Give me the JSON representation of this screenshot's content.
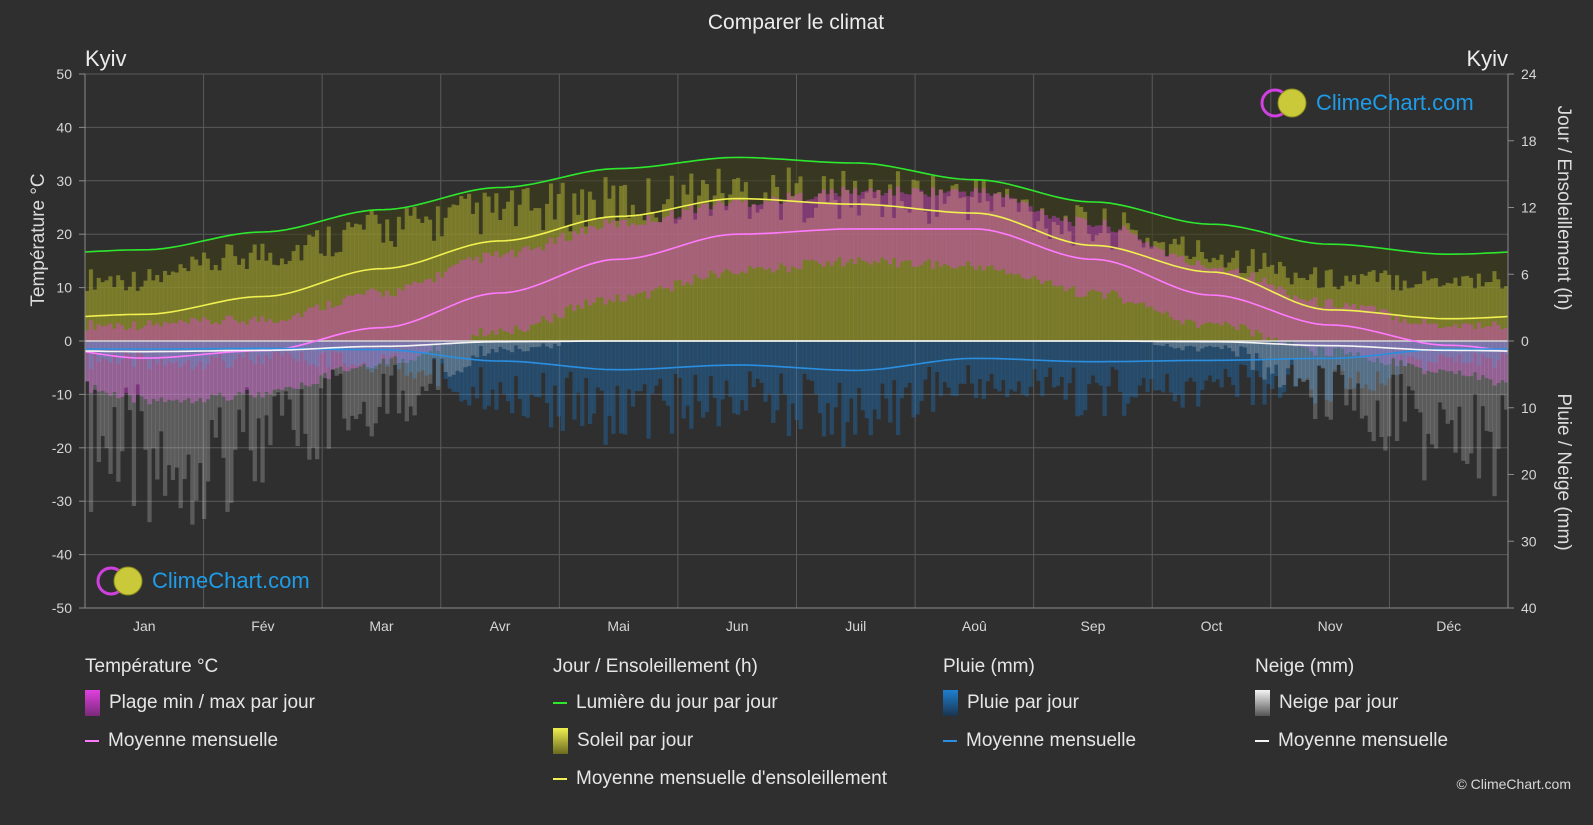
{
  "title": "Comparer le climat",
  "city_left": "Kyiv",
  "city_right": "Kyiv",
  "logo_text": "ClimeChart.com",
  "copyright": "© ClimeChart.com",
  "colors": {
    "background": "#2f2f2f",
    "temp_range": "#e040e0",
    "temp_mean": "#ff7aff",
    "daylight": "#2ee82e",
    "sunshine": "#c9c93a",
    "sunshine_mean": "#f0f050",
    "rain": "#1e7fd0",
    "rain_mean": "#2a8fe0",
    "snow": "#cfcfcf",
    "snow_mean": "#f4f4f4",
    "grid": "#5a5a5a",
    "brand": "#1e9ce8"
  },
  "legend": {
    "temp": {
      "heading": "Température °C",
      "range": "Plage min / max par jour",
      "mean": "Moyenne mensuelle"
    },
    "sun": {
      "heading": "Jour / Ensoleillement (h)",
      "daylight": "Lumière du jour par jour",
      "sunshine": "Soleil par jour",
      "mean": "Moyenne mensuelle d'ensoleillement"
    },
    "rain": {
      "heading": "Pluie (mm)",
      "per_day": "Pluie par jour",
      "mean": "Moyenne mensuelle"
    },
    "snow": {
      "heading": "Neige (mm)",
      "per_day": "Neige par jour",
      "mean": "Moyenne mensuelle"
    }
  },
  "chart_data": {
    "type": "area",
    "title": "Comparer le climat",
    "categories": [
      "Jan",
      "Fév",
      "Mar",
      "Avr",
      "Mai",
      "Jun",
      "Juil",
      "Aoû",
      "Sep",
      "Oct",
      "Nov",
      "Déc"
    ],
    "left_axis": {
      "label": "Température °C",
      "range": [
        -50,
        50
      ],
      "ticks": [
        50,
        40,
        30,
        20,
        10,
        0,
        -10,
        -20,
        -30,
        -40,
        -50
      ]
    },
    "right_axis_top": {
      "label": "Jour / Ensoleillement (h)",
      "range": [
        0,
        24
      ],
      "ticks": [
        24,
        18,
        12,
        6,
        0
      ]
    },
    "right_axis_bottom": {
      "label": "Pluie / Neige (mm)",
      "range": [
        0,
        40
      ],
      "ticks": [
        0,
        10,
        20,
        30,
        40
      ]
    },
    "grid": true,
    "series": [
      {
        "name": "Moyenne mensuelle",
        "group": "temperature",
        "unit": "°C",
        "values": [
          -3.2,
          -1.8,
          2.5,
          9.0,
          15.3,
          20.0,
          21.0,
          21.0,
          15.3,
          8.6,
          3.0,
          -0.8
        ]
      },
      {
        "name": "Plage min / max par jour",
        "group": "temperature",
        "unit": "°C",
        "min": [
          -10,
          -9,
          -3,
          3,
          9,
          14,
          16,
          15,
          10,
          4,
          -1,
          -5
        ],
        "max": [
          2,
          3,
          8,
          15,
          21,
          25,
          27,
          27,
          21,
          13,
          6,
          2
        ]
      },
      {
        "name": "Lumière du jour par jour",
        "group": "sun",
        "unit": "h",
        "values": [
          8.2,
          9.8,
          11.8,
          13.8,
          15.5,
          16.5,
          16.0,
          14.5,
          12.5,
          10.5,
          8.7,
          7.8
        ]
      },
      {
        "name": "Soleil par jour",
        "group": "sun",
        "unit": "h",
        "values": [
          6.0,
          8.5,
          11.0,
          12.5,
          13.5,
          14.5,
          14.0,
          14.0,
          11.0,
          8.5,
          6.0,
          6.0
        ]
      },
      {
        "name": "Moyenne mensuelle d'ensoleillement",
        "group": "sun",
        "unit": "h",
        "values": [
          2.4,
          4.0,
          6.5,
          9.0,
          11.2,
          12.8,
          12.3,
          11.5,
          8.6,
          6.2,
          2.8,
          2.0
        ]
      },
      {
        "name": "Moyenne mensuelle",
        "group": "rain",
        "unit": "mm",
        "values": [
          1.2,
          1.1,
          1.3,
          3.0,
          4.3,
          3.6,
          4.4,
          2.6,
          3.1,
          2.9,
          2.6,
          1.2
        ]
      },
      {
        "name": "Moyenne mensuelle",
        "group": "snow",
        "unit": "mm",
        "values": [
          1.6,
          1.4,
          0.8,
          0.1,
          0,
          0,
          0,
          0,
          0,
          0.1,
          0.7,
          1.4
        ]
      }
    ]
  }
}
